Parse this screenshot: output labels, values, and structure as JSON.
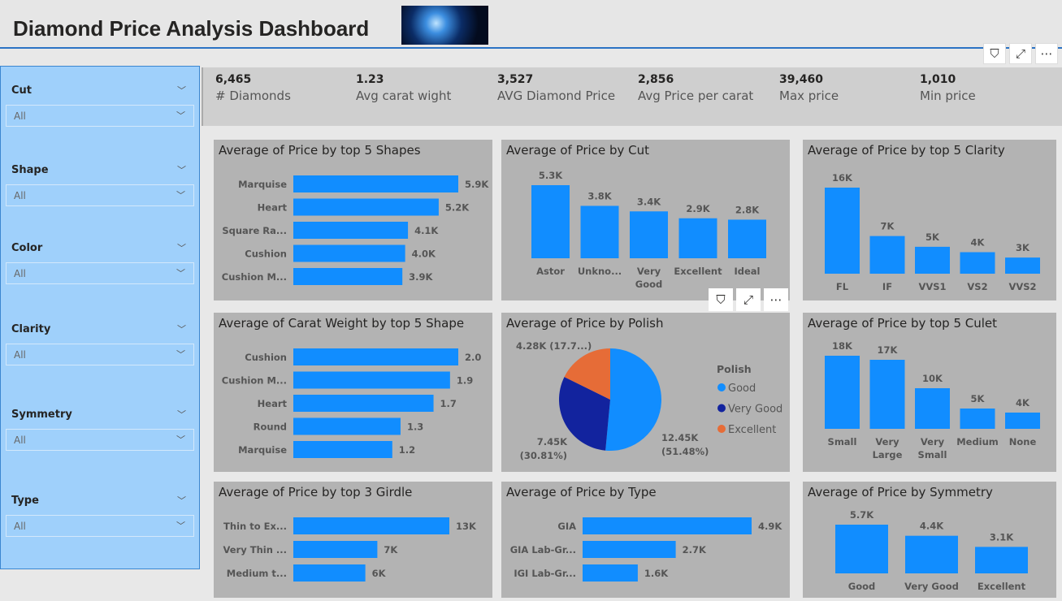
{
  "header": {
    "title": "Diamond Price Analysis Dashboard"
  },
  "icons": {
    "filter": "filter-icon",
    "focus": "focus-mode-icon",
    "more": "more-options-icon"
  },
  "colors": {
    "bar": "#118dff",
    "good": "#118dff",
    "very_good": "#12239e",
    "excellent": "#e66c37",
    "card": "#b3b3b3",
    "slicer": "#9fd0fb"
  },
  "slicers": [
    {
      "label": "Cut",
      "value": "All"
    },
    {
      "label": "Shape",
      "value": "All"
    },
    {
      "label": "Color",
      "value": "All"
    },
    {
      "label": "Clarity",
      "value": "All"
    },
    {
      "label": "Symmetry",
      "value": "All"
    },
    {
      "label": "Type",
      "value": "All"
    }
  ],
  "kpis": [
    {
      "value": "6,465",
      "label": "# Diamonds"
    },
    {
      "value": "1.23",
      "label": "Avg carat wight"
    },
    {
      "value": "3,527",
      "label": "AVG Diamond Price"
    },
    {
      "value": "2,856",
      "label": "Avg Price per carat"
    },
    {
      "value": "39,460",
      "label": "Max price"
    },
    {
      "value": "1,010",
      "label": "Min price"
    }
  ],
  "chart_data": [
    {
      "id": "shapes",
      "type": "bar",
      "orientation": "horizontal",
      "title": "Average of Price by top 5 Shapes",
      "categories": [
        "Marquise",
        "Heart",
        "Square Ra...",
        "Cushion",
        "Cushion M..."
      ],
      "values": [
        5900,
        5200,
        4100,
        4000,
        3900
      ],
      "labels": [
        "5.9K",
        "5.2K",
        "4.1K",
        "4.0K",
        "3.9K"
      ]
    },
    {
      "id": "cut",
      "type": "bar",
      "orientation": "vertical",
      "title": "Average of Price by Cut",
      "categories": [
        "Astor",
        "Unkno...",
        "Very Good",
        "Excellent",
        "Ideal"
      ],
      "values": [
        5300,
        3800,
        3400,
        2900,
        2800
      ],
      "labels": [
        "5.3K",
        "3.8K",
        "3.4K",
        "2.9K",
        "2.8K"
      ]
    },
    {
      "id": "clarity",
      "type": "bar",
      "orientation": "vertical",
      "title": "Average of Price by top 5 Clarity",
      "categories": [
        "FL",
        "IF",
        "VVS1",
        "VS2",
        "VVS2"
      ],
      "values": [
        16000,
        7000,
        5000,
        4000,
        3000
      ],
      "labels": [
        "16K",
        "7K",
        "5K",
        "4K",
        "3K"
      ]
    },
    {
      "id": "carat",
      "type": "bar",
      "orientation": "horizontal",
      "title": "Average of Carat Weight by top 5 Shape",
      "categories": [
        "Cushion",
        "Cushion M...",
        "Heart",
        "Round",
        "Marquise"
      ],
      "values": [
        2.0,
        1.9,
        1.7,
        1.3,
        1.2
      ],
      "labels": [
        "2.0",
        "1.9",
        "1.7",
        "1.3",
        "1.2"
      ]
    },
    {
      "id": "polish",
      "type": "pie",
      "title": "Average of Price by Polish",
      "legend_title": "Polish",
      "legend": "right",
      "categories": [
        "Good",
        "Very Good",
        "Excellent"
      ],
      "values": [
        12450,
        7450,
        4280
      ],
      "labels": [
        "12.45K (51.48%)",
        "7.45K (30.81%)",
        "4.28K (17.7...)"
      ]
    },
    {
      "id": "culet",
      "type": "bar",
      "orientation": "vertical",
      "title": "Average of Price by top 5 Culet",
      "categories": [
        "Small",
        "Very Large",
        "Very Small",
        "Medium",
        "None"
      ],
      "values": [
        18000,
        17000,
        10000,
        5000,
        4000
      ],
      "labels": [
        "18K",
        "17K",
        "10K",
        "5K",
        "4K"
      ]
    },
    {
      "id": "girdle",
      "type": "bar",
      "orientation": "horizontal",
      "title": "Average of Price by top 3 Girdle",
      "categories": [
        "Thin to Ex...",
        "Very Thin ...",
        "Medium t..."
      ],
      "values": [
        13000,
        7000,
        6000
      ],
      "labels": [
        "13K",
        "7K",
        "6K"
      ]
    },
    {
      "id": "type",
      "type": "bar",
      "orientation": "horizontal",
      "title": "Average of Price by Type",
      "categories": [
        "GIA",
        "GIA Lab-Gr...",
        "IGI Lab-Gr..."
      ],
      "values": [
        4900,
        2700,
        1600
      ],
      "labels": [
        "4.9K",
        "2.7K",
        "1.6K"
      ]
    },
    {
      "id": "symmetry",
      "type": "bar",
      "orientation": "vertical",
      "title": "Average of Price by Symmetry",
      "categories": [
        "Good",
        "Very Good",
        "Excellent"
      ],
      "values": [
        5700,
        4400,
        3100
      ],
      "labels": [
        "5.7K",
        "4.4K",
        "3.1K"
      ]
    }
  ]
}
